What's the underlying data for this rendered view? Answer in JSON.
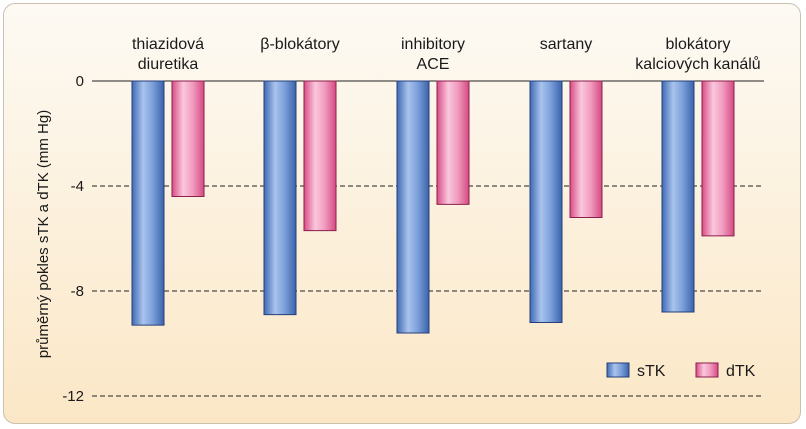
{
  "chart_data": {
    "type": "bar",
    "categories": [
      [
        "thiazidová",
        "diuretika"
      ],
      [
        "β-blokátory"
      ],
      [
        "inhibitory",
        "ACE"
      ],
      [
        "sartany"
      ],
      [
        "blokátory",
        "kalciových kanálů"
      ]
    ],
    "series": [
      {
        "name": "sTK",
        "values": [
          -9.3,
          -8.9,
          -9.6,
          -9.2,
          -8.8
        ]
      },
      {
        "name": "dTK",
        "values": [
          -4.4,
          -5.7,
          -4.7,
          -5.2,
          -5.9
        ]
      }
    ],
    "ylabel": "průměrný pokles sTK a dTK (mm Hg)",
    "ylim": [
      -12,
      0
    ],
    "yticks": [
      0,
      -4,
      -8,
      -12
    ],
    "ytick_labels": [
      "0",
      "-4",
      "-8",
      "-12"
    ],
    "grid": "dashed horizontal",
    "legend": "bottom-right",
    "colors": {
      "sTK": "#5b84c8",
      "dTK": "#e8689b"
    }
  }
}
